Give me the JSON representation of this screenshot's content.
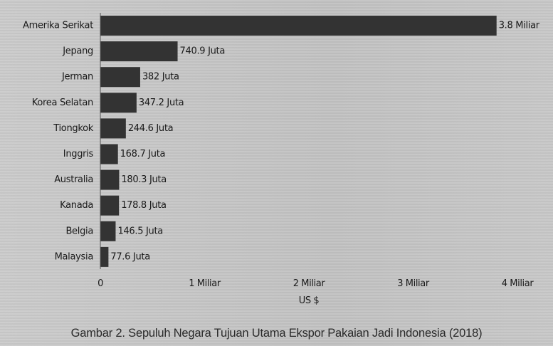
{
  "chart_data": {
    "type": "bar",
    "orientation": "horizontal",
    "title": "Gambar 2. Sepuluh Negara Tujuan Utama Ekspor Pakaian Jadi Indonesia (2018)",
    "xlabel": "US $",
    "ylabel": "",
    "xlim": [
      0,
      4
    ],
    "unit": "Miliar US $",
    "grid": false,
    "categories": [
      "Amerika Serikat",
      "Jepang",
      "Jerman",
      "Korea Selatan",
      "Tiongkok",
      "Inggris",
      "Australia",
      "Kanada",
      "Belgia",
      "Malaysia"
    ],
    "values": [
      3.8,
      0.7409,
      0.382,
      0.3472,
      0.2446,
      0.1687,
      0.1803,
      0.1788,
      0.1465,
      0.0776
    ],
    "data_labels": [
      "3.8 Miliar",
      "740.9 Juta",
      "382 Juta",
      "347.2 Juta",
      "244.6 Juta",
      "168.7 Juta",
      "180.3 Juta",
      "178.8 Juta",
      "146.5 Juta",
      "77.6 Juta"
    ],
    "ticks": [
      0,
      1,
      2,
      3,
      4
    ],
    "tick_labels": [
      "0",
      "1 Miliar",
      "2 Miliar",
      "3 Miliar",
      "4 Miliar"
    ],
    "bar_color": "#333333"
  }
}
